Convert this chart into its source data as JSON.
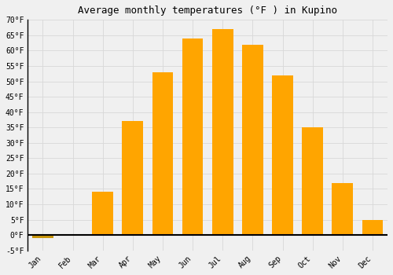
{
  "title": "Average monthly temperatures (°F ) in Kupino",
  "months": [
    "Jan",
    "Feb",
    "Mar",
    "Apr",
    "May",
    "Jun",
    "Jul",
    "Aug",
    "Sep",
    "Oct",
    "Nov",
    "Dec"
  ],
  "values": [
    -1,
    0,
    14,
    37,
    53,
    64,
    67,
    62,
    52,
    35,
    17,
    5
  ],
  "bar_color": "#FFA500",
  "bar_color_negative": "#C8960C",
  "background_color": "#F0F0F0",
  "grid_color": "#D8D8D8",
  "ylim": [
    -5,
    70
  ],
  "yticks": [
    -5,
    0,
    5,
    10,
    15,
    20,
    25,
    30,
    35,
    40,
    45,
    50,
    55,
    60,
    65,
    70
  ],
  "ytick_labels": [
    "-5°F",
    "0°F",
    "5°F",
    "10°F",
    "15°F",
    "20°F",
    "25°F",
    "30°F",
    "35°F",
    "40°F",
    "45°F",
    "50°F",
    "55°F",
    "60°F",
    "65°F",
    "70°F"
  ],
  "title_fontsize": 9,
  "tick_fontsize": 7,
  "font_family": "monospace",
  "bar_width": 0.7
}
